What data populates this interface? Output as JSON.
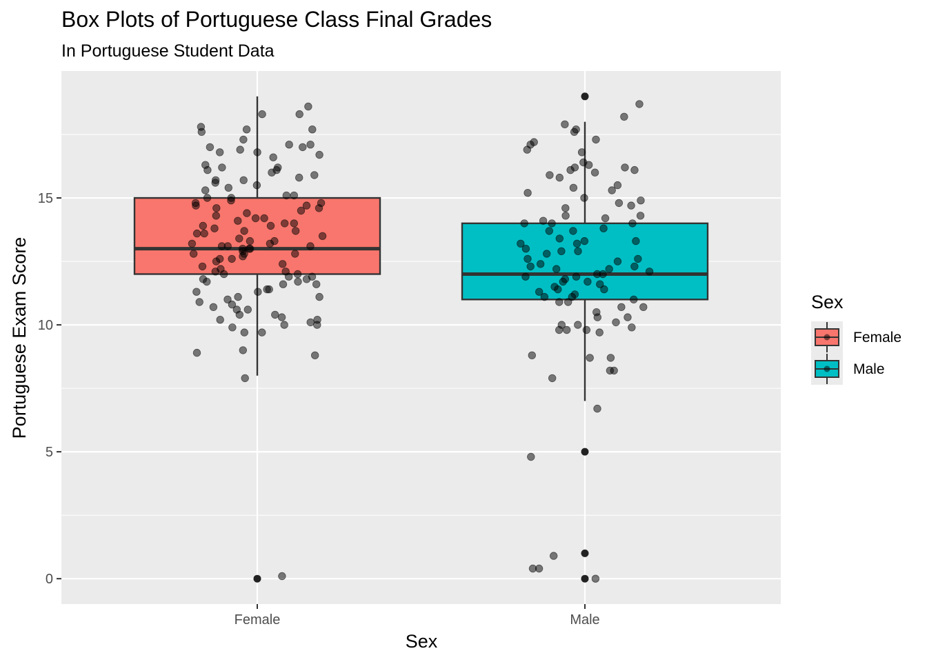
{
  "chart_data": {
    "type": "box",
    "title": "Box Plots of Portuguese Class Final Grades",
    "subtitle": "In Portuguese Student Data",
    "xlabel": "Sex",
    "ylabel": "Portuguese Exam Score",
    "ylim": [
      -1,
      20
    ],
    "yticks": [
      0,
      5,
      10,
      15
    ],
    "grid": true,
    "legend": {
      "title": "Sex",
      "position": "right",
      "entries": [
        {
          "label": "Female",
          "color": "#F8766D"
        },
        {
          "label": "Male",
          "color": "#00BFC4"
        }
      ]
    },
    "categories": [
      "Female",
      "Male"
    ],
    "boxes": [
      {
        "category": "Female",
        "color": "#F8766D",
        "whisker_low": 8,
        "q1": 12,
        "median": 13,
        "q3": 15,
        "whisker_high": 19,
        "outliers": [
          0
        ]
      },
      {
        "category": "Male",
        "color": "#00BFC4",
        "whisker_low": 7,
        "q1": 11,
        "median": 12,
        "q3": 14,
        "whisker_high": 18,
        "outliers": [
          0,
          1,
          5,
          19
        ]
      }
    ],
    "jitter_points": [
      {
        "group": "Female",
        "values": [
          18.6,
          17.7,
          17.8,
          17.3,
          17.1,
          17.0,
          16.9,
          16.8,
          16.6,
          16.2,
          16.1,
          15.9,
          15.7,
          15.7,
          15.5,
          15.4,
          15.3,
          15.1,
          15.0,
          14.9,
          14.8,
          14.7,
          14.6,
          14.5,
          14.4,
          14.3,
          14.2,
          14.1,
          14.0,
          13.9,
          13.9,
          13.8,
          13.7,
          13.6,
          13.5,
          13.4,
          13.3,
          13.2,
          13.1,
          13.1,
          13.0,
          13.0,
          12.9,
          12.8,
          12.8,
          12.7,
          12.6,
          12.5,
          12.4,
          12.3,
          12.2,
          12.1,
          12.0,
          11.9,
          11.8,
          11.7,
          11.6,
          11.4,
          11.3,
          11.1,
          11.0,
          10.8,
          10.7,
          10.6,
          10.4,
          10.3,
          10.2,
          10.1,
          10.0,
          9.9,
          9.7,
          9.0,
          8.9,
          8.8,
          7.9,
          18.3,
          18.3,
          17.7,
          17.6,
          17.1,
          17.0,
          16.8,
          16.7,
          16.3,
          16.2,
          16.1,
          16.0,
          15.8,
          15.6,
          15.1,
          15.0,
          14.8,
          14.7,
          14.6,
          14.2,
          14.0,
          13.7,
          13.6,
          13.3,
          13.2,
          13.1,
          13.0,
          12.8,
          12.6,
          12.1,
          12.0,
          11.9,
          11.8,
          11.7,
          11.6,
          11.4,
          11.3,
          11.1,
          10.9,
          10.6,
          10.4,
          10.2,
          10.0,
          9.7,
          0.1
        ]
      },
      {
        "group": "Male",
        "values": [
          18.7,
          17.9,
          17.6,
          17.2,
          16.8,
          16.3,
          16.2,
          16.0,
          15.5,
          15.4,
          15.2,
          15.0,
          14.6,
          14.3,
          14.1,
          14.0,
          14.0,
          13.7,
          13.3,
          13.2,
          13.0,
          12.9,
          12.8,
          12.6,
          12.5,
          12.3,
          12.2,
          12.0,
          11.9,
          11.7,
          11.5,
          11.4,
          11.2,
          11.1,
          11.0,
          10.9,
          10.7,
          10.5,
          10.3,
          10.0,
          9.9,
          9.8,
          9.7,
          8.8,
          8.7,
          8.2,
          8.2,
          4.8,
          0.4,
          0.4,
          0.0,
          0.9,
          18.2,
          17.7,
          17.3,
          17.1,
          16.9,
          16.4,
          16.2,
          16.1,
          16.1,
          15.9,
          15.8,
          15.3,
          14.9,
          14.8,
          14.7,
          14.3,
          14.2,
          14.0,
          13.8,
          13.7,
          13.4,
          13.3,
          13.2,
          12.9,
          12.6,
          12.4,
          12.3,
          12.2,
          12.1,
          12.0,
          11.9,
          11.8,
          11.7,
          11.6,
          11.4,
          11.3,
          11.1,
          10.9,
          10.7,
          10.3,
          10.1,
          10.0,
          9.8,
          9.8,
          8.7,
          7.9,
          6.7
        ]
      }
    ]
  }
}
